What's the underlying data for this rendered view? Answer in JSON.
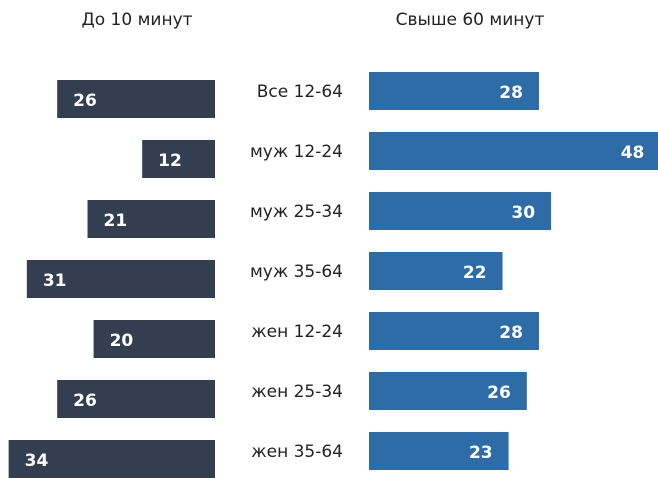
{
  "chart_data": {
    "type": "bar",
    "categories": [
      "Все 12-64",
      "муж 12-24",
      "муж 25-34",
      "муж 35-64",
      "жен 12-24",
      "жен 25-34",
      "жен 35-64"
    ],
    "series": [
      {
        "name": "До 10 минут",
        "color": "#333f50",
        "values": [
          26,
          12,
          21,
          31,
          20,
          26,
          34
        ]
      },
      {
        "name": "Свыше 60 минут",
        "color": "#2e6ca8",
        "values": [
          28,
          48,
          30,
          22,
          28,
          26,
          23
        ]
      }
    ]
  }
}
